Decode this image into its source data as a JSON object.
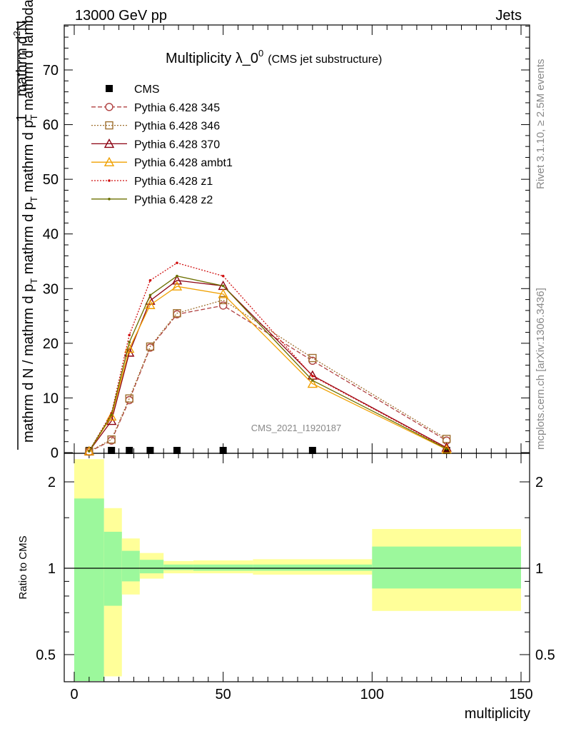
{
  "header": {
    "left": "13000 GeV pp",
    "right": "Jets"
  },
  "title": {
    "main": "Multiplicity λ_0",
    "sup": "0",
    "sub": "(CMS jet substructure)"
  },
  "side_labels": {
    "rivet": "Rivet 3.1.10, ≥ 2.5M events",
    "mcplots": "mcplots.cern.ch [arXiv:1306.3436]"
  },
  "watermark": "CMS_2021_I1920187",
  "axis_labels": {
    "ylabel_top": "1",
    "ylabel_num": "mathrm d",
    "ylabel_den": "mathrm d N / mathrm d p",
    "ratio_ylabel": "Ratio to CMS",
    "xlabel": "multiplicity"
  },
  "chart_data": [
    {
      "type": "line",
      "title": "Multiplicity λ_0^0 (CMS jet substructure)",
      "xlabel": "multiplicity",
      "ylabel": "1/(mathrm d N / mathrm d p_T) mathrm d²N/(mathrm d p_T mathrm d lambda)",
      "xlim": [
        -3,
        152
      ],
      "ylim": [
        0,
        78
      ],
      "x_ticks": [
        0,
        50,
        100,
        150
      ],
      "y_ticks": [
        0,
        10,
        20,
        30,
        40,
        50,
        60,
        70
      ],
      "legend_position": "top-left",
      "x": [
        5,
        12.5,
        18.5,
        25.5,
        34.5,
        50,
        80,
        125
      ],
      "series": [
        {
          "name": "CMS",
          "color": "#000000",
          "style": "points",
          "marker": "square",
          "values": [
            0.02,
            0.1,
            0.1,
            0.1,
            0.1,
            0.1,
            0.1,
            0.02
          ]
        },
        {
          "name": "Pythia 6.428 345",
          "color": "#b04040",
          "dash": "6,3",
          "marker": "circle",
          "values": [
            0.15,
            2.2,
            9.6,
            19.2,
            25.3,
            26.9,
            16.8,
            2.2
          ]
        },
        {
          "name": "Pythia 6.428 346",
          "color": "#a07030",
          "dash": "2,2",
          "marker": "square-open",
          "values": [
            0.2,
            2.4,
            9.9,
            19.4,
            25.5,
            27.9,
            17.3,
            2.5
          ]
        },
        {
          "name": "Pythia 6.428 370",
          "color": "#8b0010",
          "dash": "",
          "marker": "triangle",
          "values": [
            0.25,
            5.8,
            18.3,
            27.8,
            31.5,
            30.5,
            14.1,
            0.9
          ]
        },
        {
          "name": "Pythia 6.428 ambt1",
          "color": "#f0a000",
          "dash": "",
          "marker": "triangle",
          "values": [
            0.25,
            6.6,
            19.0,
            27.0,
            30.4,
            29.0,
            12.6,
            0.6
          ]
        },
        {
          "name": "Pythia 6.428 z1",
          "color": "#d01010",
          "dash": "2,2",
          "marker": "dot",
          "values": [
            0.3,
            7.2,
            21.5,
            31.5,
            34.7,
            32.3,
            14.0,
            0.8
          ]
        },
        {
          "name": "Pythia 6.428 z2",
          "color": "#6b7000",
          "dash": "",
          "marker": "dot",
          "values": [
            0.25,
            6.9,
            20.2,
            28.8,
            32.3,
            30.5,
            13.2,
            0.7
          ]
        }
      ]
    },
    {
      "type": "area",
      "title": "",
      "xlabel": "multiplicity",
      "ylabel": "Ratio to CMS",
      "xlim": [
        -3,
        152
      ],
      "ylim": [
        0.4,
        2.4
      ],
      "log_scale_y": true,
      "y_ticks": [
        0.5,
        1,
        2
      ],
      "reference_line": 1,
      "bins": [
        {
          "xlo": 0,
          "xhi": 10,
          "stat_lo": 0.4,
          "stat_hi": 1.75,
          "tot_lo": 0.4,
          "tot_hi": 2.4
        },
        {
          "xlo": 10,
          "xhi": 16,
          "stat_lo": 0.74,
          "stat_hi": 1.34,
          "tot_lo": 0.42,
          "tot_hi": 1.62
        },
        {
          "xlo": 16,
          "xhi": 22,
          "stat_lo": 0.9,
          "stat_hi": 1.15,
          "tot_lo": 0.81,
          "tot_hi": 1.27
        },
        {
          "xlo": 22,
          "xhi": 30,
          "stat_lo": 0.96,
          "stat_hi": 1.07,
          "tot_lo": 0.92,
          "tot_hi": 1.13
        },
        {
          "xlo": 30,
          "xhi": 40,
          "stat_lo": 0.985,
          "stat_hi": 1.03,
          "tot_lo": 0.96,
          "tot_hi": 1.06
        },
        {
          "xlo": 40,
          "xhi": 60,
          "stat_lo": 0.98,
          "stat_hi": 1.03,
          "tot_lo": 0.96,
          "tot_hi": 1.065
        },
        {
          "xlo": 60,
          "xhi": 100,
          "stat_lo": 0.98,
          "stat_hi": 1.03,
          "tot_lo": 0.95,
          "tot_hi": 1.075
        },
        {
          "xlo": 100,
          "xhi": 150,
          "stat_lo": 0.85,
          "stat_hi": 1.19,
          "tot_lo": 0.71,
          "tot_hi": 1.37
        }
      ]
    }
  ],
  "colors": {
    "stat_band": "#9cf89c",
    "tot_band": "#ffff99"
  }
}
